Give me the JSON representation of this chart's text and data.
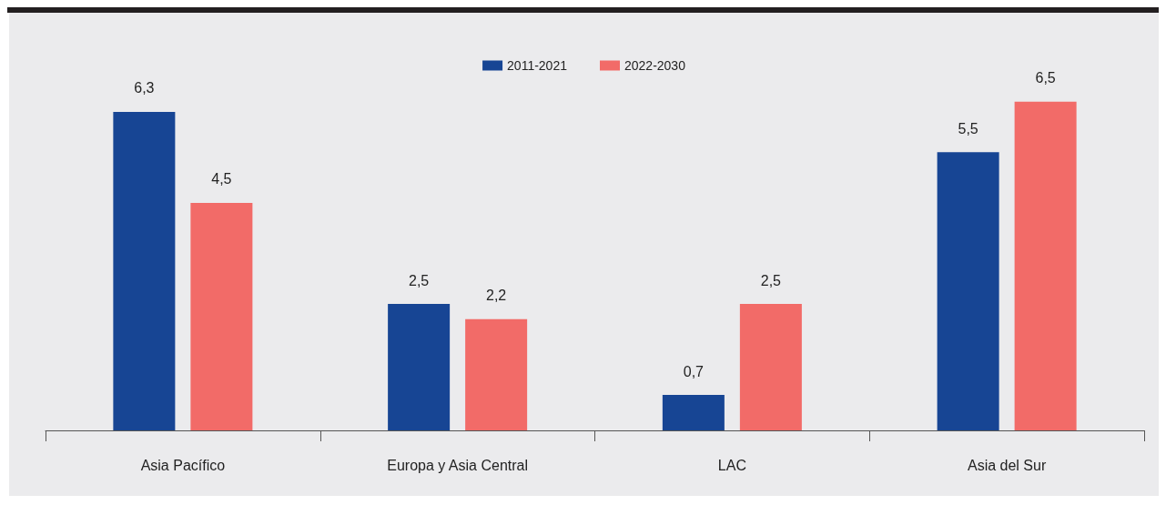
{
  "chart_data": {
    "type": "bar",
    "categories": [
      "Asia Pacífico",
      "Europa y Asia Central",
      "LAC",
      "Asia del Sur"
    ],
    "series": [
      {
        "name": "2011-2021",
        "color": "#174594",
        "values": [
          6.3,
          2.5,
          0.7,
          5.5
        ],
        "value_labels": [
          "6,3",
          "2,5",
          "0,7",
          "5,5"
        ]
      },
      {
        "name": "2022-2030",
        "color": "#f26b68",
        "values": [
          4.5,
          2.2,
          2.5,
          6.5
        ],
        "value_labels": [
          "4,5",
          "2,2",
          "2,5",
          "6,5"
        ]
      }
    ],
    "legend": "top",
    "grid": false
  }
}
